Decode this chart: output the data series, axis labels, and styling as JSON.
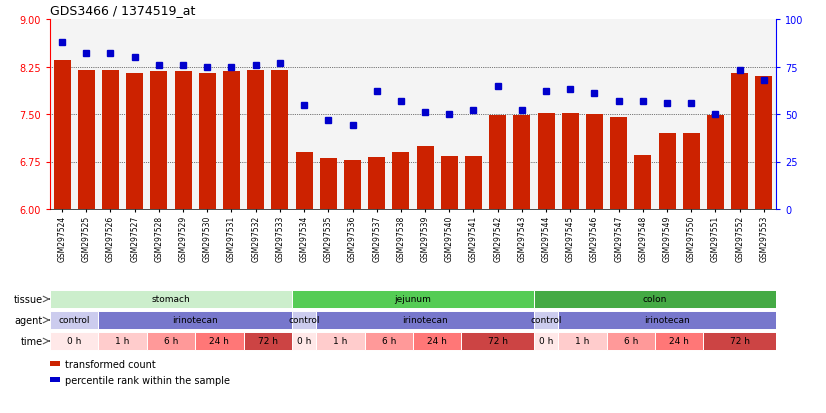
{
  "title": "GDS3466 / 1374519_at",
  "samples": [
    "GSM297524",
    "GSM297525",
    "GSM297526",
    "GSM297527",
    "GSM297528",
    "GSM297529",
    "GSM297530",
    "GSM297531",
    "GSM297532",
    "GSM297533",
    "GSM297534",
    "GSM297535",
    "GSM297536",
    "GSM297537",
    "GSM297538",
    "GSM297539",
    "GSM297540",
    "GSM297541",
    "GSM297542",
    "GSM297543",
    "GSM297544",
    "GSM297545",
    "GSM297546",
    "GSM297547",
    "GSM297548",
    "GSM297549",
    "GSM297550",
    "GSM297551",
    "GSM297552",
    "GSM297553"
  ],
  "bar_values": [
    8.35,
    8.2,
    8.2,
    8.15,
    8.18,
    8.18,
    8.14,
    8.18,
    8.2,
    8.2,
    6.9,
    6.8,
    6.78,
    6.82,
    6.9,
    7.0,
    6.83,
    6.83,
    7.48,
    7.48,
    7.52,
    7.52,
    7.5,
    7.45,
    6.85,
    7.2,
    7.2,
    7.48,
    8.15,
    8.1
  ],
  "percentile_values": [
    88,
    82,
    82,
    80,
    76,
    76,
    75,
    75,
    76,
    77,
    55,
    47,
    44,
    62,
    57,
    51,
    50,
    52,
    65,
    52,
    62,
    63,
    61,
    57,
    57,
    56,
    56,
    50,
    73,
    68
  ],
  "ylim_left": [
    6,
    9
  ],
  "ylim_right": [
    0,
    100
  ],
  "yticks_left": [
    6,
    6.75,
    7.5,
    8.25,
    9
  ],
  "yticks_right": [
    0,
    25,
    50,
    75,
    100
  ],
  "bar_color": "#cc2200",
  "dot_color": "#0000cc",
  "bar_bottom": 6,
  "tissue_groups": [
    {
      "label": "stomach",
      "start": 0,
      "end": 10,
      "color": "#cceecc"
    },
    {
      "label": "jejunum",
      "start": 10,
      "end": 20,
      "color": "#55cc55"
    },
    {
      "label": "colon",
      "start": 20,
      "end": 30,
      "color": "#44aa44"
    }
  ],
  "agent_groups": [
    {
      "label": "control",
      "start": 0,
      "end": 2,
      "color": "#ccccee"
    },
    {
      "label": "irinotecan",
      "start": 2,
      "end": 10,
      "color": "#7777cc"
    },
    {
      "label": "control",
      "start": 10,
      "end": 11,
      "color": "#ccccee"
    },
    {
      "label": "irinotecan",
      "start": 11,
      "end": 20,
      "color": "#7777cc"
    },
    {
      "label": "control",
      "start": 20,
      "end": 21,
      "color": "#ccccee"
    },
    {
      "label": "irinotecan",
      "start": 21,
      "end": 30,
      "color": "#7777cc"
    }
  ],
  "time_groups": [
    {
      "label": "0 h",
      "start": 0,
      "end": 2,
      "color": "#ffe8e8"
    },
    {
      "label": "1 h",
      "start": 2,
      "end": 4,
      "color": "#ffcccc"
    },
    {
      "label": "6 h",
      "start": 4,
      "end": 6,
      "color": "#ff9999"
    },
    {
      "label": "24 h",
      "start": 6,
      "end": 8,
      "color": "#ff7777"
    },
    {
      "label": "72 h",
      "start": 8,
      "end": 10,
      "color": "#cc4444"
    },
    {
      "label": "0 h",
      "start": 10,
      "end": 11,
      "color": "#ffe8e8"
    },
    {
      "label": "1 h",
      "start": 11,
      "end": 13,
      "color": "#ffcccc"
    },
    {
      "label": "6 h",
      "start": 13,
      "end": 15,
      "color": "#ff9999"
    },
    {
      "label": "24 h",
      "start": 15,
      "end": 17,
      "color": "#ff7777"
    },
    {
      "label": "72 h",
      "start": 17,
      "end": 20,
      "color": "#cc4444"
    },
    {
      "label": "0 h",
      "start": 20,
      "end": 21,
      "color": "#ffe8e8"
    },
    {
      "label": "1 h",
      "start": 21,
      "end": 23,
      "color": "#ffcccc"
    },
    {
      "label": "6 h",
      "start": 23,
      "end": 25,
      "color": "#ff9999"
    },
    {
      "label": "24 h",
      "start": 25,
      "end": 27,
      "color": "#ff7777"
    },
    {
      "label": "72 h",
      "start": 27,
      "end": 30,
      "color": "#cc4444"
    }
  ],
  "legend_items": [
    {
      "color": "#cc2200",
      "label": "transformed count"
    },
    {
      "color": "#0000cc",
      "label": "percentile rank within the sample"
    }
  ]
}
